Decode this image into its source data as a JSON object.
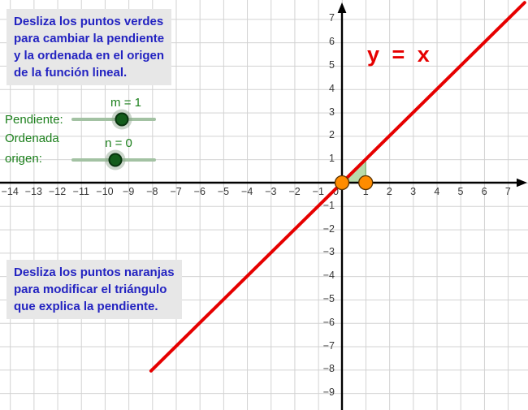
{
  "theme": {
    "instruction_blue": "#2323c1",
    "box_gray": "#e7e7e7",
    "green_text": "#1b7f1b",
    "track_green": "#a3c2a3",
    "handle_green": "#135c1b",
    "red": "#e60000",
    "orange": "#ff8c00",
    "triangle_green": "#74b758",
    "grid_gray": "#d2d2d2",
    "tick_gray": "#383838",
    "axis_black": "#000000"
  },
  "instructions": {
    "top_lines": [
      "Desliza los puntos verdes",
      "para cambiar la pendiente",
      "y la ordenada en el origen",
      "de la función lineal."
    ],
    "bottom_lines": [
      "Desliza los puntos naranjas",
      "para modificar el triángulo",
      "que explica la pendiente."
    ]
  },
  "controls": {
    "pendiente_label": "Pendiente:",
    "ordenada_label_lines": [
      "Ordenada",
      "origen:"
    ],
    "sliders": [
      {
        "id": "m",
        "value_label": "m = 1",
        "value": 1
      },
      {
        "id": "n",
        "value_label": "n = 0",
        "value": 0
      }
    ]
  },
  "chart_data": {
    "type": "line",
    "title": "",
    "xlabel": "",
    "ylabel": "",
    "equation_label": "y = x",
    "function": {
      "slope_m": 1,
      "intercept_n": 0,
      "line_color": "#e60000"
    },
    "segment_world_x": [
      -8.05,
      7.7
    ],
    "x_ticks": [
      -14,
      -13,
      -12,
      -11,
      -10,
      -9,
      -8,
      -7,
      -6,
      -5,
      -4,
      -3,
      -2,
      -1,
      1,
      2,
      3,
      4,
      5,
      6,
      7
    ],
    "y_ticks": [
      7,
      6,
      5,
      4,
      3,
      2,
      1,
      -1,
      -2,
      -3,
      -4,
      -5,
      -6,
      -7,
      -8,
      -9
    ],
    "origin_tick_label": "0",
    "x_range_shown": [
      -14.4,
      7.9
    ],
    "y_range_shown": [
      -9.7,
      7.8
    ],
    "grid": true,
    "points": [
      {
        "name": "orange-point-origin",
        "x": 0,
        "y": 0,
        "color": "#ff8c00"
      },
      {
        "name": "orange-point-unit",
        "x": 1,
        "y": 0,
        "color": "#ff8c00"
      }
    ],
    "slope_triangle": {
      "vertices_world": [
        [
          0,
          0
        ],
        [
          1,
          0
        ],
        [
          1,
          1
        ]
      ],
      "fill": "#74b758",
      "edge": "#5a9e46"
    }
  }
}
